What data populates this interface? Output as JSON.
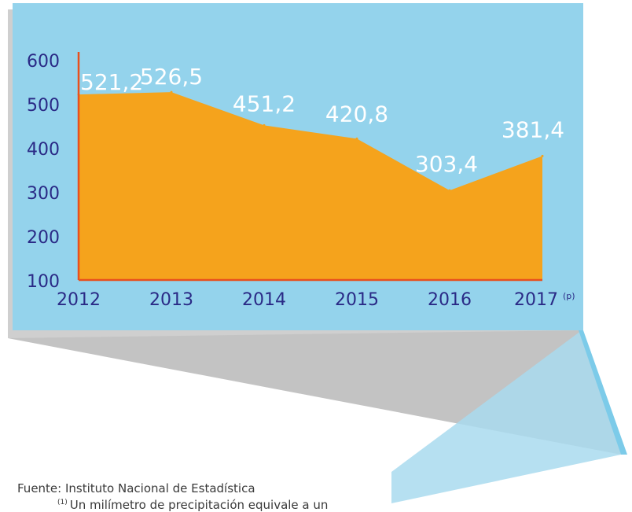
{
  "colors": {
    "panel": "#94d3ec",
    "area": "#f5a31c",
    "axis_line": "#e8501e",
    "tick_text": "#2a2a86",
    "value_text": "#ffffff",
    "shadow": "#c8c8c8"
  },
  "chart_data": {
    "type": "area",
    "title": "",
    "xlabel": "",
    "ylabel": "",
    "categories": [
      "2012",
      "2013",
      "2014",
      "2015",
      "2016",
      "2017"
    ],
    "values": [
      521.2,
      526.5,
      451.2,
      420.8,
      303.4,
      381.4
    ],
    "value_labels": [
      "521,2",
      "526,5",
      "451,2",
      "420,8",
      "303,4",
      "381,4"
    ],
    "x_tick_labels": [
      "2012",
      "2013",
      "2014",
      "2015",
      "2016",
      "2017"
    ],
    "last_tick_note": "(p)",
    "y_ticks": [
      100,
      200,
      300,
      400,
      500,
      600
    ],
    "ylim": [
      100,
      600
    ],
    "grid": false,
    "legend": "none"
  },
  "footer": {
    "source": "Fuente: Instituto Nacional de Estadística",
    "note_marker": "(1)",
    "note": "Un milímetro de precipitación equivale a un"
  }
}
